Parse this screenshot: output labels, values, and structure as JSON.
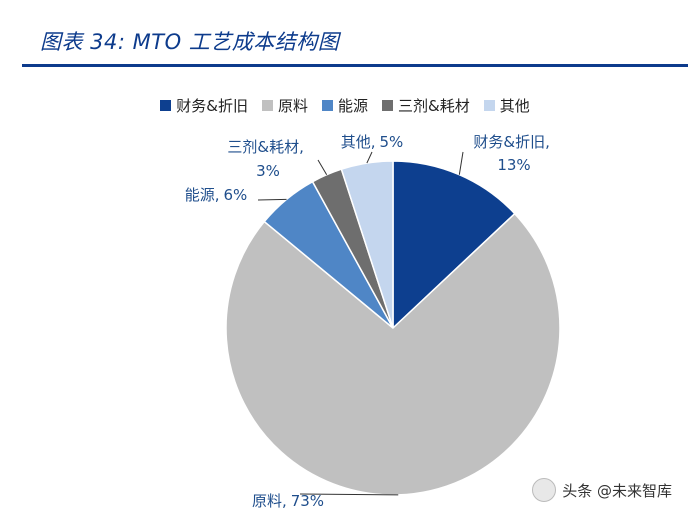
{
  "header": {
    "title": "图表 34:  MTO 工艺成本结构图"
  },
  "chart_data": {
    "type": "pie",
    "title": "",
    "categories": [
      "财务&折旧",
      "原料",
      "能源",
      "三剂&耗材",
      "其他"
    ],
    "values": [
      13,
      73,
      6,
      3,
      5
    ],
    "value_labels": [
      "13%",
      "73%",
      "6%",
      "3%",
      "5%"
    ],
    "colors": [
      "#0d3f8f",
      "#c0c0c0",
      "#4f86c6",
      "#6e6e6e",
      "#c4d6ee"
    ],
    "legend_position": "top",
    "start_angle_deg": 0,
    "direction": "clockwise"
  },
  "callouts": [
    {
      "name": "财务&折旧,",
      "value": "13%"
    },
    {
      "name": "原料,",
      "value": "73%"
    },
    {
      "name": "能源,",
      "value": "6%"
    },
    {
      "name": "三剂&耗材,",
      "value": "3%"
    },
    {
      "name": "其他,",
      "value": "5%"
    }
  ],
  "watermark": {
    "text": "头条 @未来智库"
  }
}
